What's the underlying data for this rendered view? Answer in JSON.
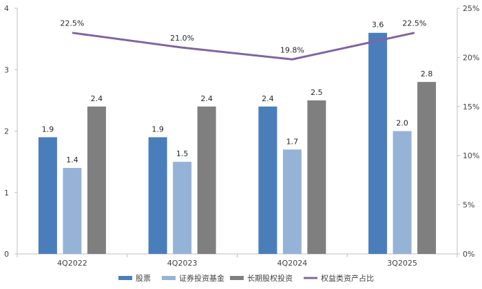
{
  "chart_data": {
    "type": "bar",
    "categories": [
      "4Q2022",
      "4Q2023",
      "4Q2024",
      "3Q2025"
    ],
    "series": [
      {
        "name": "股票",
        "type": "bar",
        "axis": "left",
        "color": "#4a7ebb",
        "values": [
          1.9,
          1.9,
          2.4,
          3.6
        ],
        "labels": [
          "1.9",
          "1.9",
          "2.4",
          "3.6"
        ]
      },
      {
        "name": "证券投资基金",
        "type": "bar",
        "axis": "left",
        "color": "#95b3d7",
        "values": [
          1.4,
          1.5,
          1.7,
          2.0
        ],
        "labels": [
          "1.4",
          "1.5",
          "1.7",
          "2.0"
        ]
      },
      {
        "name": "长期股权投资",
        "type": "bar",
        "axis": "left",
        "color": "#7f7f7f",
        "values": [
          2.4,
          2.4,
          2.5,
          2.8
        ],
        "labels": [
          "2.4",
          "2.4",
          "2.5",
          "2.8"
        ]
      },
      {
        "name": "权益类资产占比",
        "type": "line",
        "axis": "right",
        "color": "#8064a2",
        "values": [
          22.5,
          21.0,
          19.8,
          22.5
        ],
        "labels": [
          "22.5%",
          "21.0%",
          "19.8%",
          "22.5%"
        ]
      }
    ],
    "y_left": {
      "ylim": [
        0,
        4
      ],
      "ticks": [
        0,
        1,
        2,
        3,
        4
      ],
      "tick_labels": [
        "0",
        "1",
        "2",
        "3",
        "4"
      ]
    },
    "y_right": {
      "ylim": [
        0,
        25
      ],
      "ticks": [
        0,
        5,
        10,
        15,
        20,
        25
      ],
      "tick_labels": [
        "0%",
        "5%",
        "10%",
        "15%",
        "20%",
        "25%"
      ]
    },
    "title": "",
    "xlabel": "",
    "ylabel": "",
    "grid": false,
    "legend": "bottom"
  }
}
